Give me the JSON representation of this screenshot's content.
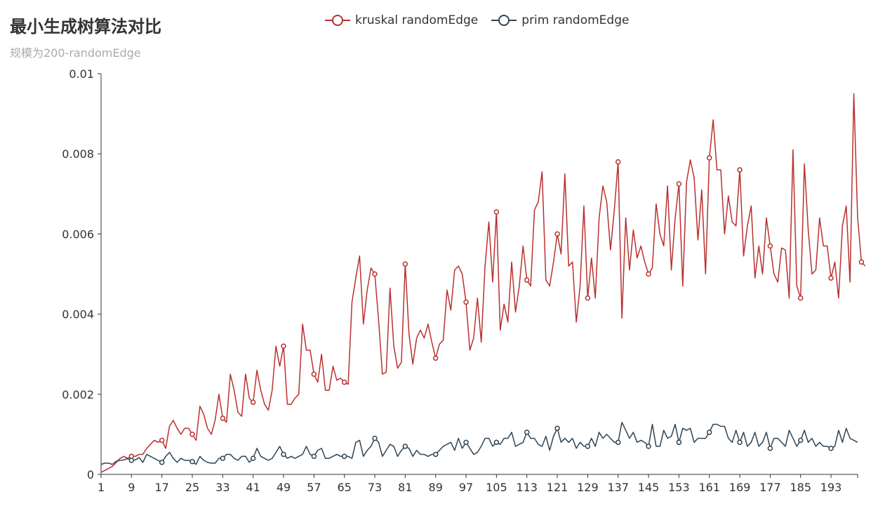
{
  "title": "最小生成树算法对比",
  "subtitle": "规模为200-randomEdge",
  "colors": {
    "kruskal": "#b8312f",
    "prim": "#2f4454",
    "axis": "#333333"
  },
  "chart_data": {
    "type": "line",
    "title": "最小生成树算法对比",
    "subtitle": "规模为200-randomEdge",
    "legend_position": "top-center",
    "grid": false,
    "x_range": [
      1,
      200
    ],
    "x_tick_labels": [
      "1",
      "9",
      "17",
      "25",
      "33",
      "41",
      "49",
      "57",
      "65",
      "73",
      "81",
      "89",
      "97",
      "105",
      "113",
      "121",
      "129",
      "137",
      "145",
      "153",
      "161",
      "169",
      "177",
      "185",
      "193"
    ],
    "ylim": [
      0,
      0.01
    ],
    "y_tick_labels": [
      "0",
      "0.002",
      "0.004",
      "0.006",
      "0.008",
      "0.01"
    ],
    "series": [
      {
        "name": "kruskal randomEdge",
        "color": "#b8312f",
        "values": [
          5e-05,
          0.0001,
          0.00015,
          0.0002,
          0.0003,
          0.0004,
          0.00045,
          0.0004,
          0.00045,
          0.00045,
          0.0005,
          0.0005,
          0.00065,
          0.00075,
          0.00085,
          0.0008,
          0.00085,
          0.00065,
          0.0012,
          0.00135,
          0.00115,
          0.001,
          0.00115,
          0.00115,
          0.001,
          0.00085,
          0.0017,
          0.0015,
          0.00115,
          0.001,
          0.00135,
          0.002,
          0.0014,
          0.0013,
          0.0025,
          0.0021,
          0.00155,
          0.00145,
          0.0025,
          0.0019,
          0.0018,
          0.0026,
          0.0021,
          0.00175,
          0.0016,
          0.0021,
          0.0032,
          0.0027,
          0.0032,
          0.00175,
          0.00175,
          0.0019,
          0.002,
          0.00375,
          0.0031,
          0.0031,
          0.0025,
          0.0023,
          0.003,
          0.0021,
          0.0021,
          0.0027,
          0.00235,
          0.0024,
          0.0023,
          0.00225,
          0.0043,
          0.0049,
          0.00545,
          0.00375,
          0.0046,
          0.00515,
          0.005,
          0.00385,
          0.0025,
          0.00255,
          0.00465,
          0.0032,
          0.00265,
          0.0028,
          0.00525,
          0.0035,
          0.00275,
          0.0034,
          0.0036,
          0.0034,
          0.00375,
          0.0033,
          0.0029,
          0.00325,
          0.00335,
          0.0046,
          0.0041,
          0.0051,
          0.0052,
          0.005,
          0.0043,
          0.0031,
          0.0034,
          0.0044,
          0.0033,
          0.0052,
          0.0063,
          0.0048,
          0.00655,
          0.0036,
          0.00425,
          0.0038,
          0.0053,
          0.00405,
          0.0047,
          0.0057,
          0.00485,
          0.0047,
          0.0066,
          0.0068,
          0.00755,
          0.00485,
          0.0047,
          0.0053,
          0.006,
          0.0055,
          0.0075,
          0.0052,
          0.0053,
          0.0038,
          0.0047,
          0.0067,
          0.0044,
          0.0054,
          0.0044,
          0.0064,
          0.0072,
          0.0068,
          0.0056,
          0.0066,
          0.0078,
          0.0039,
          0.0064,
          0.0051,
          0.0061,
          0.0054,
          0.0057,
          0.0053,
          0.005,
          0.00515,
          0.00675,
          0.006,
          0.0057,
          0.0072,
          0.0051,
          0.0064,
          0.00725,
          0.0047,
          0.0073,
          0.00785,
          0.0074,
          0.00585,
          0.0071,
          0.005,
          0.0079,
          0.00885,
          0.0076,
          0.0076,
          0.006,
          0.00695,
          0.0063,
          0.0062,
          0.0076,
          0.00545,
          0.0062,
          0.0067,
          0.0049,
          0.0057,
          0.005,
          0.0064,
          0.0057,
          0.005,
          0.0048,
          0.00565,
          0.0056,
          0.0044,
          0.0081,
          0.0047,
          0.0044,
          0.00775,
          0.0061,
          0.005,
          0.0051,
          0.0064,
          0.0057,
          0.0057,
          0.0049,
          0.0053,
          0.0044,
          0.0062,
          0.0067,
          0.0048,
          0.0095,
          0.0064,
          0.0053,
          0.0052
        ]
      },
      {
        "name": "prim randomEdge",
        "color": "#2f4454",
        "values": [
          0.00025,
          0.00028,
          0.00028,
          0.00025,
          0.00033,
          0.00035,
          0.00036,
          0.0004,
          0.00035,
          0.00036,
          0.00042,
          0.0003,
          0.0005,
          0.00045,
          0.0004,
          0.00035,
          0.0003,
          0.00045,
          0.00055,
          0.0004,
          0.0003,
          0.0004,
          0.00035,
          0.00035,
          0.00032,
          0.00025,
          0.00045,
          0.00035,
          0.0003,
          0.00028,
          0.00028,
          0.0004,
          0.0004,
          0.0005,
          0.0005,
          0.0004,
          0.00035,
          0.00045,
          0.00045,
          0.0003,
          0.0004,
          0.00065,
          0.00045,
          0.0004,
          0.00035,
          0.0004,
          0.00055,
          0.0007,
          0.0005,
          0.0004,
          0.00045,
          0.0004,
          0.00045,
          0.0005,
          0.0007,
          0.0005,
          0.00045,
          0.0006,
          0.00065,
          0.0004,
          0.0004,
          0.00045,
          0.0005,
          0.00045,
          0.00045,
          0.00045,
          0.0004,
          0.0008,
          0.00085,
          0.00045,
          0.0006,
          0.0007,
          0.0009,
          0.0008,
          0.00045,
          0.0006,
          0.00075,
          0.0007,
          0.00045,
          0.0006,
          0.0007,
          0.00065,
          0.00045,
          0.0006,
          0.0005,
          0.0005,
          0.00045,
          0.0005,
          0.0005,
          0.0006,
          0.0007,
          0.00075,
          0.0008,
          0.0006,
          0.0009,
          0.00065,
          0.0008,
          0.00065,
          0.0005,
          0.00055,
          0.0007,
          0.0009,
          0.0009,
          0.0007,
          0.0008,
          0.00075,
          0.0009,
          0.0009,
          0.00105,
          0.0007,
          0.00075,
          0.0008,
          0.00105,
          0.0009,
          0.0009,
          0.00075,
          0.0007,
          0.00095,
          0.0006,
          0.00095,
          0.00115,
          0.0008,
          0.0009,
          0.0008,
          0.0009,
          0.00065,
          0.0008,
          0.0007,
          0.0007,
          0.0009,
          0.0007,
          0.00105,
          0.0009,
          0.001,
          0.0009,
          0.0008,
          0.0008,
          0.0013,
          0.0011,
          0.0009,
          0.00105,
          0.0008,
          0.00085,
          0.0008,
          0.0007,
          0.00125,
          0.0007,
          0.0007,
          0.0011,
          0.0009,
          0.00095,
          0.00125,
          0.0008,
          0.00115,
          0.0011,
          0.00115,
          0.0008,
          0.0009,
          0.0009,
          0.0009,
          0.00105,
          0.00125,
          0.00125,
          0.0012,
          0.0012,
          0.0009,
          0.0008,
          0.0011,
          0.0008,
          0.00105,
          0.0007,
          0.0008,
          0.00105,
          0.0007,
          0.0008,
          0.00105,
          0.00065,
          0.0009,
          0.0009,
          0.0008,
          0.0007,
          0.0011,
          0.0009,
          0.0007,
          0.00085,
          0.0011,
          0.0008,
          0.0009,
          0.0007,
          0.0008,
          0.0007,
          0.0007,
          0.00065,
          0.0007,
          0.0011,
          0.0008,
          0.00115,
          0.0009,
          0.00085,
          0.0008
        ]
      }
    ]
  }
}
